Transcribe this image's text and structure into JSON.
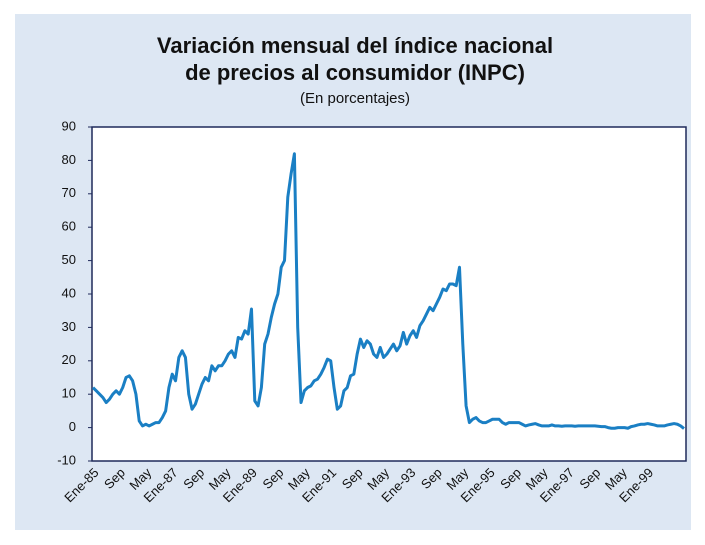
{
  "chart_data": {
    "type": "line",
    "title": [
      "Variación mensual del índice nacional",
      "de precios al consumidor (INPC)"
    ],
    "subtitle": "(En porcentajes)",
    "categories": [
      "Ene-85",
      null,
      null,
      null,
      null,
      null,
      null,
      null,
      "Sep",
      null,
      null,
      null,
      null,
      null,
      null,
      null,
      "May",
      null,
      null,
      null,
      null,
      null,
      null,
      null,
      "Ene-87",
      null,
      null,
      null,
      null,
      null,
      null,
      null,
      "Sep",
      null,
      null,
      null,
      null,
      null,
      null,
      null,
      "May",
      null,
      null,
      null,
      null,
      null,
      null,
      null,
      "Ene-89",
      null,
      null,
      null,
      null,
      null,
      null,
      null,
      "Sep",
      null,
      null,
      null,
      null,
      null,
      null,
      null,
      "May",
      null,
      null,
      null,
      null,
      null,
      null,
      null,
      "Ene-91",
      null,
      null,
      null,
      null,
      null,
      null,
      null,
      "Sep",
      null,
      null,
      null,
      null,
      null,
      null,
      null,
      "May",
      null,
      null,
      null,
      null,
      null,
      null,
      null,
      "Ene-93",
      null,
      null,
      null,
      null,
      null,
      null,
      null,
      "Sep",
      null,
      null,
      null,
      null,
      null,
      null,
      null,
      "May",
      null,
      null,
      null,
      null,
      null,
      null,
      null,
      "Ene-95",
      null,
      null,
      null,
      null,
      null,
      null,
      null,
      "Sep",
      null,
      null,
      null,
      null,
      null,
      null,
      null,
      "May",
      null,
      null,
      null,
      null,
      null,
      null,
      null,
      "Ene-97",
      null,
      null,
      null,
      null,
      null,
      null,
      null,
      "Sep",
      null,
      null,
      null,
      null,
      null,
      null,
      null,
      "May",
      null,
      null,
      null,
      null,
      null,
      null,
      null,
      "Ene-99",
      null,
      null,
      null,
      null,
      null,
      null,
      null,
      null,
      null,
      null,
      null
    ],
    "values": [
      12,
      11,
      10,
      9,
      7.5,
      8.5,
      10,
      11,
      10,
      12,
      15,
      15.5,
      14,
      10,
      2,
      0.5,
      1,
      0.5,
      1,
      1.5,
      1.5,
      3,
      5,
      12,
      16,
      14,
      21,
      23,
      21,
      10,
      5.5,
      7,
      10,
      13,
      15,
      14,
      18.5,
      17,
      18.5,
      18.5,
      20,
      22,
      23,
      21,
      27,
      26.5,
      29,
      28,
      35.5,
      8,
      6.5,
      12,
      25,
      28,
      33,
      37,
      40,
      48,
      50,
      69,
      76,
      82,
      30,
      7.5,
      11,
      12,
      12.5,
      14,
      14.5,
      16,
      18,
      20.5,
      20,
      12,
      5.5,
      6.5,
      11,
      12,
      15.5,
      16,
      22,
      26.5,
      24,
      26,
      25,
      22,
      21,
      24,
      21,
      22,
      23.5,
      25,
      23,
      24.5,
      28.5,
      25,
      27.5,
      29,
      27,
      30.5,
      32,
      34,
      36,
      35,
      37,
      39,
      41.5,
      41,
      43,
      43,
      42.5,
      48,
      25,
      6.5,
      1.5,
      2.5,
      3,
      2,
      1.5,
      1.5,
      2,
      2.5,
      2.5,
      2.5,
      1.5,
      1,
      1.5,
      1.5,
      1.5,
      1.5,
      1,
      0.5,
      0.8,
      1,
      1.2,
      0.8,
      0.5,
      0.5,
      0.5,
      0.8,
      0.5,
      0.5,
      0.4,
      0.5,
      0.5,
      0.5,
      0.4,
      0.5,
      0.5,
      0.5,
      0.5,
      0.5,
      0.5,
      0.4,
      0.3,
      0.3,
      0,
      -0.2,
      -0.2,
      0,
      0,
      0,
      -0.2,
      0.3,
      0.5,
      0.8,
      1,
      1,
      1.2,
      1,
      0.8,
      0.5,
      0.5,
      0.5,
      0.8,
      1,
      1.2,
      1,
      0.5,
      -0.3
    ],
    "color": "#1a7fc4",
    "ylim": [
      -10,
      90
    ],
    "yticks": [
      -10,
      0,
      10,
      20,
      30,
      40,
      50,
      60,
      70,
      80,
      90
    ]
  }
}
